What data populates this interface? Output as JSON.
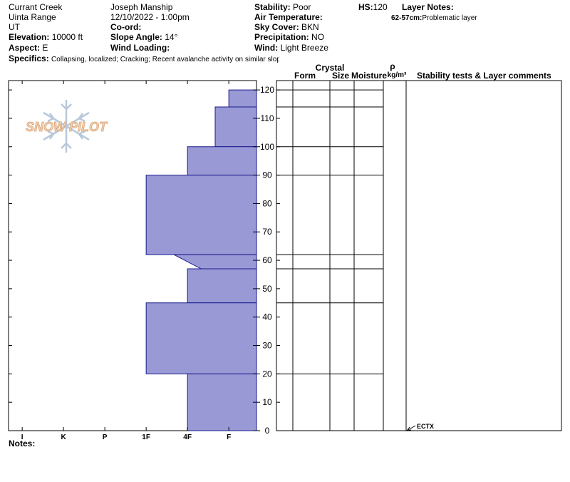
{
  "header": {
    "location": "Currant Creek",
    "range": "Uinta Range",
    "state": "UT",
    "elevation_label": "Elevation:",
    "elevation": "10000 ft",
    "aspect_label": "Aspect:",
    "aspect": "E",
    "observer": "Joseph Manship",
    "datetime": "12/10/2022 - 1:00pm",
    "coord_label": "Co-ord:",
    "slope_label": "Slope Angle:",
    "slope": "14°",
    "wind_loading_label": "Wind Loading:",
    "stability_label": "Stability:",
    "stability": "Poor",
    "air_temp_label": "Air Temperature:",
    "sky_label": "Sky Cover:",
    "sky": "BKN",
    "precip_label": "Precipitation:",
    "precip": "NO",
    "wind_label": "Wind:",
    "wind": "Light Breeze",
    "hs_label": "HS:",
    "hs": "120",
    "layer_notes_label": "Layer Notes:",
    "layer_note_range": "62-57cm:",
    "layer_note": "Problematic layer",
    "specifics_label": "Specifics:",
    "specifics": "Collapsing, localized; Cracking; Recent avalanche activity on similar slopes"
  },
  "logo": "SNOW PILOT",
  "chart_data": {
    "type": "hardness-profile",
    "color": "#9999d6",
    "layers": [
      {
        "top": 120,
        "bottom": 114,
        "hardness_top": 1,
        "hardness_bottom": 1
      },
      {
        "top": 114,
        "bottom": 100,
        "hardness_top": 1.33,
        "hardness_bottom": 1.33
      },
      {
        "top": 100,
        "bottom": 90,
        "hardness_top": 2,
        "hardness_bottom": 2
      },
      {
        "top": 90,
        "bottom": 62,
        "hardness_top": 3,
        "hardness_bottom": 3
      },
      {
        "top": 62,
        "bottom": 57,
        "hardness_top": 2.33,
        "hardness_bottom": 1.67
      },
      {
        "top": 57,
        "bottom": 45,
        "hardness_top": 2,
        "hardness_bottom": 2
      },
      {
        "top": 45,
        "bottom": 20,
        "hardness_top": 3,
        "hardness_bottom": 3
      },
      {
        "top": 20,
        "bottom": 0,
        "hardness_top": 2,
        "hardness_bottom": 2
      }
    ],
    "ylim": [
      0,
      123.3
    ],
    "yticks": [
      0,
      10,
      20,
      30,
      40,
      50,
      60,
      70,
      80,
      90,
      100,
      110,
      120
    ],
    "xlim": [
      6.33,
      0.33
    ],
    "xticks": [
      {
        "value": 6,
        "label": "I"
      },
      {
        "value": 5,
        "label": "K"
      },
      {
        "value": 4,
        "label": "P"
      },
      {
        "value": 3,
        "label": "1F"
      },
      {
        "value": 2,
        "label": "4F"
      },
      {
        "value": 1,
        "label": "F"
      }
    ]
  },
  "table": {
    "crystal": "Crystal",
    "form": "Form",
    "size": "Size",
    "moisture": "Moisture",
    "rho": "ρ",
    "density_unit": "kg/m³",
    "comments": "Stability tests & Layer comments"
  },
  "stability_tests": [
    {
      "result": "ECTX",
      "depth": 0
    }
  ],
  "notes_label": "Notes:"
}
